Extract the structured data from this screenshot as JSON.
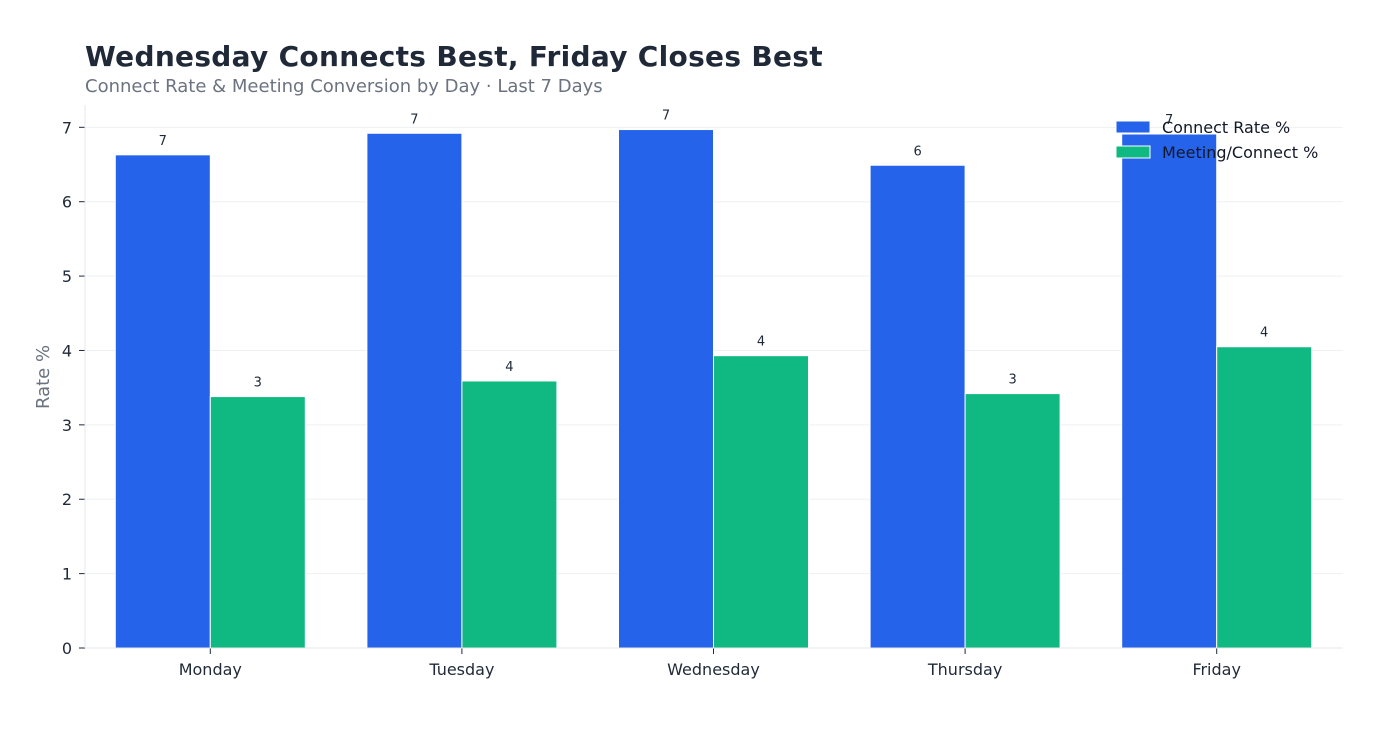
{
  "chart_data": {
    "type": "bar",
    "title": "Wednesday Connects Best, Friday Closes Best",
    "subtitle": "Connect Rate & Meeting Conversion by Day · Last 7 Days",
    "ylabel": "Rate %",
    "xlabel": "",
    "ylim": [
      0,
      7.3
    ],
    "yticks": [
      "0",
      "1",
      "2",
      "3",
      "4",
      "5",
      "6",
      "7"
    ],
    "categories": [
      "Monday",
      "Tuesday",
      "Wednesday",
      "Thursday",
      "Friday"
    ],
    "series": [
      {
        "name": "Connect Rate %",
        "color": "#2563eb",
        "values": [
          6.63,
          6.92,
          6.97,
          6.49,
          6.91
        ],
        "labels": [
          "7",
          "7",
          "7",
          "6",
          "7"
        ]
      },
      {
        "name": "Meeting/Connect %",
        "color": "#10b981",
        "values": [
          3.38,
          3.59,
          3.93,
          3.42,
          4.05
        ],
        "labels": [
          "3",
          "4",
          "4",
          "3",
          "4"
        ]
      }
    ],
    "grid": true,
    "legend": "top-right"
  }
}
